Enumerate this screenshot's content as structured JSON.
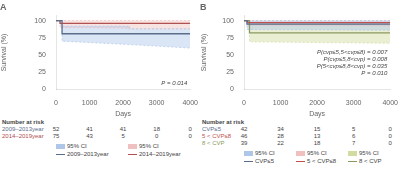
{
  "chart_data": [
    {
      "type": "line",
      "title": "A",
      "xlabel": "Days",
      "ylabel": "Survival (%)",
      "xlim": [
        0,
        4000
      ],
      "xticks": [
        0,
        1000,
        2000,
        3000,
        4000
      ],
      "ylim": [
        0,
        107
      ],
      "yticks": [
        0,
        25,
        50,
        75,
        100
      ],
      "grid": false,
      "legend": "bottom",
      "series": [
        {
          "name": "2009–2013year",
          "color": "#5a6e8c",
          "x": [
            0,
            180,
            180,
            2200,
            2200,
            4000
          ],
          "values": [
            100,
            100,
            80.8,
            80.8,
            80.8,
            80.8
          ],
          "ci_name": "95% CI",
          "ci_color": "#aec6e8",
          "ci_upper": [
            100,
            100,
            92,
            92,
            88,
            88
          ],
          "ci_lower": [
            100,
            100,
            70,
            65,
            65,
            60
          ],
          "at_risk": [
            52,
            41,
            41,
            18,
            0
          ]
        },
        {
          "name": "2014–2019year",
          "color": "#b05050",
          "x": [
            0,
            120,
            120,
            2100,
            2100,
            4000
          ],
          "values": [
            100,
            100,
            96,
            96,
            96,
            96
          ],
          "ci_name": "95% CI",
          "ci_color": "#f0c0c0",
          "ci_upper": [
            100,
            100,
            100,
            100,
            100,
            100
          ],
          "ci_lower": [
            100,
            100,
            90,
            89,
            88,
            88
          ],
          "at_risk": [
            75,
            43,
            5,
            0,
            0
          ]
        }
      ],
      "annotations": [
        "P = 0.014"
      ],
      "risk_title": "Number at risk",
      "risk_times": [
        0,
        1000,
        2000,
        3000,
        4000
      ]
    },
    {
      "type": "line",
      "title": "B",
      "xlabel": "Days",
      "ylabel": "Survival (%)",
      "xlim": [
        0,
        4000
      ],
      "xticks": [
        0,
        1000,
        2000,
        3000,
        4000
      ],
      "ylim": [
        0,
        107
      ],
      "yticks": [
        0,
        25,
        50,
        75,
        100
      ],
      "grid": false,
      "legend": "bottom",
      "series": [
        {
          "name": "CVP≤5",
          "color": "#5a6e8c",
          "x": [
            0,
            80,
            80,
            4000
          ],
          "values": [
            100,
            100,
            95,
            95
          ],
          "ci_name": "95% CI",
          "ci_color": "#aec6e8",
          "ci_upper": [
            100,
            100,
            100,
            100
          ],
          "ci_lower": [
            100,
            100,
            87,
            86
          ],
          "at_risk": [
            42,
            34,
            15,
            5,
            0
          ]
        },
        {
          "name": "5 < CVP≤8",
          "color": "#c05050",
          "x": [
            0,
            100,
            100,
            4000
          ],
          "values": [
            100,
            100,
            97,
            97
          ],
          "ci_name": "95% CI",
          "ci_color": "#f0c0c0",
          "ci_upper": [
            100,
            100,
            100,
            100
          ],
          "ci_lower": [
            100,
            100,
            93,
            92
          ],
          "at_risk": [
            46,
            28,
            13,
            6,
            0
          ]
        },
        {
          "name": "8 < CVP",
          "color": "#8a9a60",
          "x": [
            0,
            150,
            150,
            4000
          ],
          "values": [
            100,
            100,
            82,
            82
          ],
          "ci_name": "95% CI",
          "ci_color": "#d0dca0",
          "ci_upper": [
            100,
            100,
            95,
            95
          ],
          "ci_lower": [
            100,
            100,
            69,
            67
          ],
          "at_risk": [
            39,
            22,
            18,
            7,
            0
          ]
        }
      ],
      "annotations": [
        "P(cvp≤5,5<cvp≤8) = 0.007",
        "P(cvp≤5,8<cvp) = 0.008",
        "P(5<cvp≤8,8<cvp) = 0.035",
        "P = 0.010"
      ],
      "risk_title": "Number at risk",
      "risk_times": [
        0,
        1000,
        2000,
        3000,
        4000
      ]
    }
  ]
}
